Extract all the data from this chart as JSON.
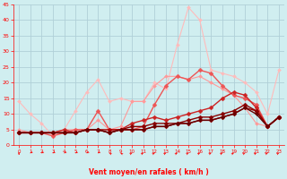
{
  "xlabel": "Vent moyen/en rafales ( km/h )",
  "xlim": [
    -0.5,
    23.5
  ],
  "ylim": [
    0,
    45
  ],
  "yticks": [
    0,
    5,
    10,
    15,
    20,
    25,
    30,
    35,
    40,
    45
  ],
  "xticks": [
    0,
    1,
    2,
    3,
    4,
    5,
    6,
    7,
    8,
    9,
    10,
    11,
    12,
    13,
    14,
    15,
    16,
    17,
    18,
    19,
    20,
    21,
    22,
    23
  ],
  "background_color": "#d0eef0",
  "grid_color": "#b0d0d8",
  "series": [
    {
      "x": [
        0,
        1,
        2,
        3,
        4,
        5,
        6,
        7,
        8,
        9,
        10,
        11,
        12,
        13,
        14,
        15,
        16,
        17,
        18,
        19,
        20,
        21,
        22,
        23
      ],
      "y": [
        14,
        10,
        7,
        3,
        5,
        11,
        17,
        21,
        14,
        15,
        14,
        14,
        20,
        18,
        32,
        44,
        40,
        24,
        23,
        22,
        20,
        17,
        10,
        24
      ],
      "color": "#ffbbbb",
      "lw": 0.8,
      "marker": "D",
      "ms": 2.0
    },
    {
      "x": [
        0,
        1,
        2,
        3,
        4,
        5,
        6,
        7,
        8,
        9,
        10,
        11,
        12,
        13,
        14,
        15,
        16,
        17,
        18,
        19,
        20,
        21,
        22,
        23
      ],
      "y": [
        5,
        4,
        4,
        4,
        5,
        5,
        5,
        8,
        5,
        6,
        14,
        14,
        19,
        22,
        22,
        21,
        22,
        20,
        18,
        16,
        12,
        7,
        6,
        9
      ],
      "color": "#ff9999",
      "lw": 0.8,
      "marker": "D",
      "ms": 2.0
    },
    {
      "x": [
        0,
        1,
        2,
        3,
        4,
        5,
        6,
        7,
        8,
        9,
        10,
        11,
        12,
        13,
        14,
        15,
        16,
        17,
        18,
        19,
        20,
        21,
        22,
        23
      ],
      "y": [
        4,
        4,
        4,
        3,
        4,
        5,
        5,
        11,
        5,
        5,
        5,
        6,
        13,
        19,
        22,
        21,
        24,
        23,
        19,
        16,
        15,
        13,
        6,
        9
      ],
      "color": "#ee5555",
      "lw": 1.0,
      "marker": "D",
      "ms": 2.5
    },
    {
      "x": [
        0,
        1,
        2,
        3,
        4,
        5,
        6,
        7,
        8,
        9,
        10,
        11,
        12,
        13,
        14,
        15,
        16,
        17,
        18,
        19,
        20,
        21,
        22,
        23
      ],
      "y": [
        4,
        4,
        4,
        4,
        5,
        4,
        5,
        5,
        4,
        5,
        7,
        8,
        9,
        8,
        9,
        10,
        11,
        12,
        15,
        17,
        16,
        12,
        6,
        9
      ],
      "color": "#cc2222",
      "lw": 1.0,
      "marker": "D",
      "ms": 2.5
    },
    {
      "x": [
        0,
        1,
        2,
        3,
        4,
        5,
        6,
        7,
        8,
        9,
        10,
        11,
        12,
        13,
        14,
        15,
        16,
        17,
        18,
        19,
        20,
        21,
        22,
        23
      ],
      "y": [
        4,
        4,
        4,
        4,
        4,
        4,
        5,
        5,
        5,
        5,
        5,
        5,
        6,
        6,
        7,
        7,
        8,
        8,
        9,
        10,
        12,
        11,
        6,
        9
      ],
      "color": "#aa0000",
      "lw": 1.0,
      "marker": "D",
      "ms": 2.5
    },
    {
      "x": [
        0,
        1,
        2,
        3,
        4,
        5,
        6,
        7,
        8,
        9,
        10,
        11,
        12,
        13,
        14,
        15,
        16,
        17,
        18,
        19,
        20,
        21,
        22,
        23
      ],
      "y": [
        4,
        4,
        4,
        4,
        4,
        4,
        5,
        5,
        4,
        5,
        6,
        6,
        7,
        7,
        7,
        8,
        9,
        9,
        10,
        11,
        13,
        11,
        6,
        9
      ],
      "color": "#880000",
      "lw": 1.0,
      "marker": "D",
      "ms": 2.5
    },
    {
      "x": [
        0,
        1,
        2,
        3,
        4,
        5,
        6,
        7,
        8,
        9,
        10,
        11,
        12,
        13,
        14,
        15,
        16,
        17,
        18,
        19,
        20,
        21,
        22,
        23
      ],
      "y": [
        4,
        4,
        4,
        4,
        4,
        4,
        5,
        5,
        4,
        5,
        5,
        5,
        6,
        6,
        7,
        7,
        8,
        8,
        9,
        10,
        12,
        10,
        6,
        9
      ],
      "color": "#660000",
      "lw": 1.0,
      "marker": "D",
      "ms": 2.0
    }
  ],
  "wind_angles": [
    180,
    225,
    225,
    225,
    225,
    225,
    225,
    225,
    315,
    315,
    45,
    45,
    45,
    45,
    45,
    45,
    45,
    45,
    45,
    45,
    45,
    45,
    45,
    45
  ]
}
